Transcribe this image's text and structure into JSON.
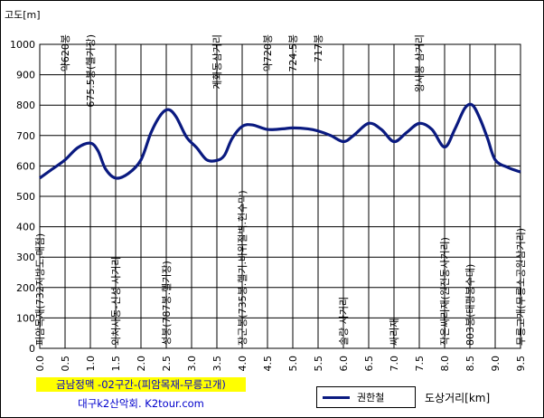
{
  "chart_data": {
    "type": "line",
    "ylabel": "고도[m]",
    "xlabel": "도상거리[km]",
    "ylim": [
      0,
      1000
    ],
    "xlim": [
      0,
      9.5
    ],
    "yticks": [
      "0",
      "100",
      "200",
      "300",
      "400",
      "500",
      "600",
      "700",
      "800",
      "900",
      "1000"
    ],
    "xticks": [
      "0.0",
      "0.5",
      "1.0",
      "1.5",
      "2.0",
      "2.5",
      "3.0",
      "3.5",
      "4.0",
      "4.5",
      "5.0",
      "5.5",
      "6.0",
      "6.5",
      "7.0",
      "7.5",
      "8.0",
      "8.5",
      "9.0",
      "9.5"
    ],
    "grid": true,
    "legend_position": "bottom",
    "series": [
      {
        "name": "권한철",
        "color": "#0a1a80",
        "x": [
          0,
          0.25,
          0.5,
          0.75,
          1.0,
          1.15,
          1.3,
          1.5,
          1.75,
          2.0,
          2.2,
          2.4,
          2.55,
          2.7,
          2.9,
          3.1,
          3.3,
          3.5,
          3.65,
          3.8,
          4.0,
          4.2,
          4.5,
          4.8,
          5.0,
          5.3,
          5.5,
          5.75,
          6.0,
          6.2,
          6.5,
          6.75,
          7.0,
          7.25,
          7.5,
          7.75,
          8.0,
          8.2,
          8.4,
          8.55,
          8.7,
          8.85,
          9.0,
          9.25,
          9.5
        ],
        "y": [
          560,
          590,
          620,
          660,
          675,
          650,
          590,
          560,
          575,
          620,
          710,
          770,
          785,
          760,
          695,
          660,
          620,
          618,
          635,
          690,
          730,
          735,
          720,
          722,
          725,
          722,
          715,
          700,
          680,
          700,
          740,
          720,
          680,
          710,
          740,
          720,
          662,
          720,
          790,
          800,
          755,
          690,
          620,
          595,
          580
        ]
      }
    ],
    "annotations": [
      {
        "x": 0.0,
        "text": "피암목재(732지방도,매점)",
        "anchor": "low"
      },
      {
        "x": 0.5,
        "text": "약620봉",
        "anchor": "high"
      },
      {
        "x": 1.0,
        "text": "675.5봉(헬기장)",
        "anchor": "high"
      },
      {
        "x": 1.5,
        "text": "외처사동-신성 사거리",
        "anchor": "low"
      },
      {
        "x": 2.5,
        "text": "성봉(787봉.헬기장)",
        "anchor": "low"
      },
      {
        "x": 3.5,
        "text": "계화동삼거리",
        "anchor": "high"
      },
      {
        "x": 4.0,
        "text": "장군봉(735봉.헬기.바위절벽.현수막)",
        "anchor": "low"
      },
      {
        "x": 4.5,
        "text": "약720봉",
        "anchor": "high"
      },
      {
        "x": 5.0,
        "text": "724.5봉",
        "anchor": "high"
      },
      {
        "x": 5.5,
        "text": "717봉",
        "anchor": "high"
      },
      {
        "x": 6.0,
        "text": "솔랑 사거리",
        "anchor": "low"
      },
      {
        "x": 7.0,
        "text": "싸리재",
        "anchor": "low"
      },
      {
        "x": 7.5,
        "text": "왕사봉 삼거리",
        "anchor": "high"
      },
      {
        "x": 8.0,
        "text": "작은싸리재(원전동사거리)",
        "anchor": "low"
      },
      {
        "x": 8.5,
        "text": "803봉(태평봉수대)",
        "anchor": "low"
      },
      {
        "x": 9.5,
        "text": "무릉고개(무릉소공원삼거리)",
        "anchor": "low"
      }
    ]
  },
  "title_line1": "금남정맥 -02구간-(피암목재-무릉고개)",
  "title_line2": "대구k2산악회. K2tour.com"
}
